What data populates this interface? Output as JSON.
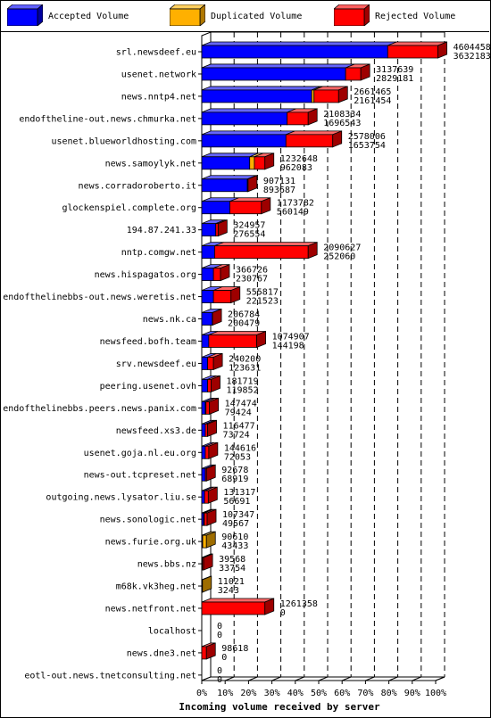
{
  "legend": [
    {
      "label": "Accepted Volume",
      "color": "#0000ff"
    },
    {
      "label": "Duplicated Volume",
      "color": "#ffb000"
    },
    {
      "label": "Rejected Volume",
      "color": "#ff0000"
    }
  ],
  "chart_data": {
    "type": "bar",
    "orientation": "horizontal",
    "stacked": true,
    "title": "Incoming volume received by server",
    "xlim": [
      0,
      100
    ],
    "x_unit": "%",
    "x_ticks": [
      "0%",
      "10%",
      "20%",
      "30%",
      "40%",
      "50%",
      "60%",
      "70%",
      "80%",
      "90%",
      "100%"
    ],
    "grid": "dashed vertical",
    "legend_position": "top",
    "series": [
      {
        "name": "Accepted Volume",
        "color": "#0000ff"
      },
      {
        "name": "Duplicated Volume",
        "color": "#ffb000"
      },
      {
        "name": "Rejected Volume",
        "color": "#ff0000"
      }
    ],
    "servers": [
      {
        "name": "srl.newsdeef.eu",
        "label_top": "4604458",
        "label_bottom": "3632183",
        "accepted": 79.5,
        "duplicated": 0,
        "rejected": 21.5
      },
      {
        "name": "usenet.network",
        "label_top": "3137639",
        "label_bottom": "2829181",
        "accepted": 61.5,
        "duplicated": 0,
        "rejected": 6.5
      },
      {
        "name": "news.nntp4.net",
        "label_top": "2661465",
        "label_bottom": "2161454",
        "accepted": 47.0,
        "duplicated": 1.0,
        "rejected": 10.5
      },
      {
        "name": "endoftheline-out.news.chmurka.net",
        "label_top": "2108334",
        "label_bottom": "1696543",
        "accepted": 36.5,
        "duplicated": 0,
        "rejected": 9.0
      },
      {
        "name": "usenet.blueworldhosting.com",
        "label_top": "2578006",
        "label_bottom": "1653754",
        "accepted": 36.0,
        "duplicated": 0,
        "rejected": 20.0
      },
      {
        "name": "news.samoylyk.net",
        "label_top": "1232648",
        "label_bottom": "962083",
        "accepted": 20.5,
        "duplicated": 2.0,
        "rejected": 4.5
      },
      {
        "name": "news.corradoroberto.it",
        "label_top": "907131",
        "label_bottom": "893687",
        "accepted": 19.5,
        "duplicated": 0,
        "rejected": 0.3
      },
      {
        "name": "glockenspiel.complete.org",
        "label_top": "1173782",
        "label_bottom": "560149",
        "accepted": 12.0,
        "duplicated": 0,
        "rejected": 13.5
      },
      {
        "name": "194.87.241.33",
        "label_top": "324957",
        "label_bottom": "276554",
        "accepted": 6.0,
        "duplicated": 0,
        "rejected": 1.0
      },
      {
        "name": "nntp.comgw.net",
        "label_top": "2090627",
        "label_bottom": "252060",
        "accepted": 5.5,
        "duplicated": 0,
        "rejected": 40.0
      },
      {
        "name": "news.hispagatos.org",
        "label_top": "366726",
        "label_bottom": "230767",
        "accepted": 5.0,
        "duplicated": 0,
        "rejected": 3.0
      },
      {
        "name": "endofthelinebbs-out.news.weretis.net",
        "label_top": "555817",
        "label_bottom": "221523",
        "accepted": 5.0,
        "duplicated": 0,
        "rejected": 7.5
      },
      {
        "name": "news.nk.ca",
        "label_top": "206784",
        "label_bottom": "200479",
        "accepted": 4.5,
        "duplicated": 0,
        "rejected": 0.1
      },
      {
        "name": "newsfeed.bofh.team",
        "label_top": "1074907",
        "label_bottom": "144198",
        "accepted": 3.0,
        "duplicated": 0,
        "rejected": 20.5
      },
      {
        "name": "srv.newsdeef.eu",
        "label_top": "240200",
        "label_bottom": "123631",
        "accepted": 2.5,
        "duplicated": 0,
        "rejected": 2.5
      },
      {
        "name": "peering.usenet.ovh",
        "label_top": "181719",
        "label_bottom": "119852",
        "accepted": 2.5,
        "duplicated": 0,
        "rejected": 1.5
      },
      {
        "name": "endofthelinebbs.peers.news.panix.com",
        "label_top": "147474",
        "label_bottom": "79424",
        "accepted": 1.5,
        "duplicated": 0.3,
        "rejected": 1.5
      },
      {
        "name": "newsfeed.xs3.de",
        "label_top": "116477",
        "label_bottom": "73724",
        "accepted": 1.5,
        "duplicated": 0,
        "rejected": 1.0
      },
      {
        "name": "usenet.goja.nl.eu.org",
        "label_top": "144616",
        "label_bottom": "72053",
        "accepted": 1.5,
        "duplicated": 0,
        "rejected": 1.5
      },
      {
        "name": "news-out.tcpreset.net",
        "label_top": "92678",
        "label_bottom": "68919",
        "accepted": 1.5,
        "duplicated": 0,
        "rejected": 0.5
      },
      {
        "name": "outgoing.news.lysator.liu.se",
        "label_top": "131317",
        "label_bottom": "56691",
        "accepted": 1.2,
        "duplicated": 0,
        "rejected": 1.6
      },
      {
        "name": "news.sonologic.net",
        "label_top": "107347",
        "label_bottom": "49567",
        "accepted": 0.8,
        "duplicated": 0.3,
        "rejected": 1.2
      },
      {
        "name": "news.furie.org.uk",
        "label_top": "90610",
        "label_bottom": "43433",
        "accepted": 0.4,
        "duplicated": 1.6,
        "rejected": 0
      },
      {
        "name": "news.bbs.nz",
        "label_top": "39568",
        "label_bottom": "33754",
        "accepted": 0.3,
        "duplicated": 0,
        "rejected": 0.5
      },
      {
        "name": "m68k.vk3heg.net",
        "label_top": "11021",
        "label_bottom": "3243",
        "accepted": 0.1,
        "duplicated": 0.2,
        "rejected": 0
      },
      {
        "name": "news.netfront.net",
        "label_top": "1261358",
        "label_bottom": "0",
        "accepted": 0,
        "duplicated": 0,
        "rejected": 27.0
      },
      {
        "name": "localhost",
        "label_top": "0",
        "label_bottom": "0",
        "accepted": 0,
        "duplicated": 0,
        "rejected": 0
      },
      {
        "name": "news.dne3.net",
        "label_top": "98618",
        "label_bottom": "0",
        "accepted": 0,
        "duplicated": 0,
        "rejected": 2.0
      },
      {
        "name": "eotl-out.news.tnetconsulting.net",
        "label_top": "0",
        "label_bottom": "0",
        "accepted": 0,
        "duplicated": 0,
        "rejected": 0
      }
    ]
  }
}
